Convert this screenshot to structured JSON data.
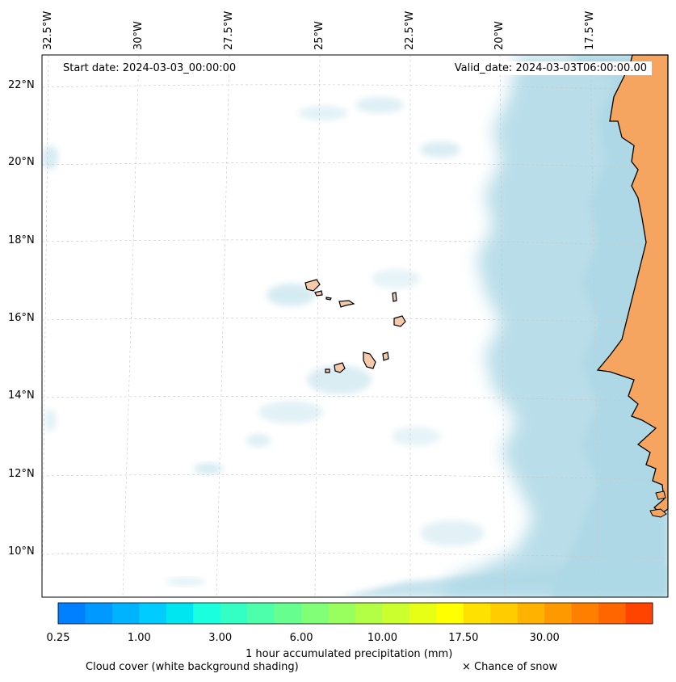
{
  "map": {
    "start_date": "Start date: 2024-03-03_00:00:00",
    "valid_date": "Valid_date: 2024-03-03T06:00:00.00",
    "lon_labels": [
      "32.5°W",
      "30°W",
      "27.5°W",
      "25°W",
      "22.5°W",
      "20°W",
      "17.5°W"
    ],
    "lat_labels": [
      "22°N",
      "20°N",
      "18°N",
      "16°N",
      "14°N",
      "12°N",
      "10°N"
    ],
    "colors": {
      "land": "#f5a55f",
      "island": "#f6c9a8",
      "cloud": "#add8e6",
      "coast": "#000000"
    }
  },
  "colorbar": {
    "ticks": [
      "0.25",
      "1.00",
      "3.00",
      "6.00",
      "10.00",
      "17.50",
      "30.00"
    ],
    "colors": [
      "#0080ff",
      "#0099ff",
      "#00b3ff",
      "#00ccff",
      "#00e6f0",
      "#1affdd",
      "#33ffc4",
      "#4dffaa",
      "#66ff8f",
      "#80ff77",
      "#99ff5e",
      "#b3ff45",
      "#ccff2e",
      "#e6ff14",
      "#ffff00",
      "#ffe100",
      "#ffcc00",
      "#ffb300",
      "#ff9900",
      "#ff7f00",
      "#ff6600",
      "#ff4400"
    ],
    "label": "1 hour accumulated precipitation (mm)"
  },
  "legend": {
    "cloud_caption": "Cloud cover (white background shading)",
    "snow_caption": "× Chance of snow"
  }
}
